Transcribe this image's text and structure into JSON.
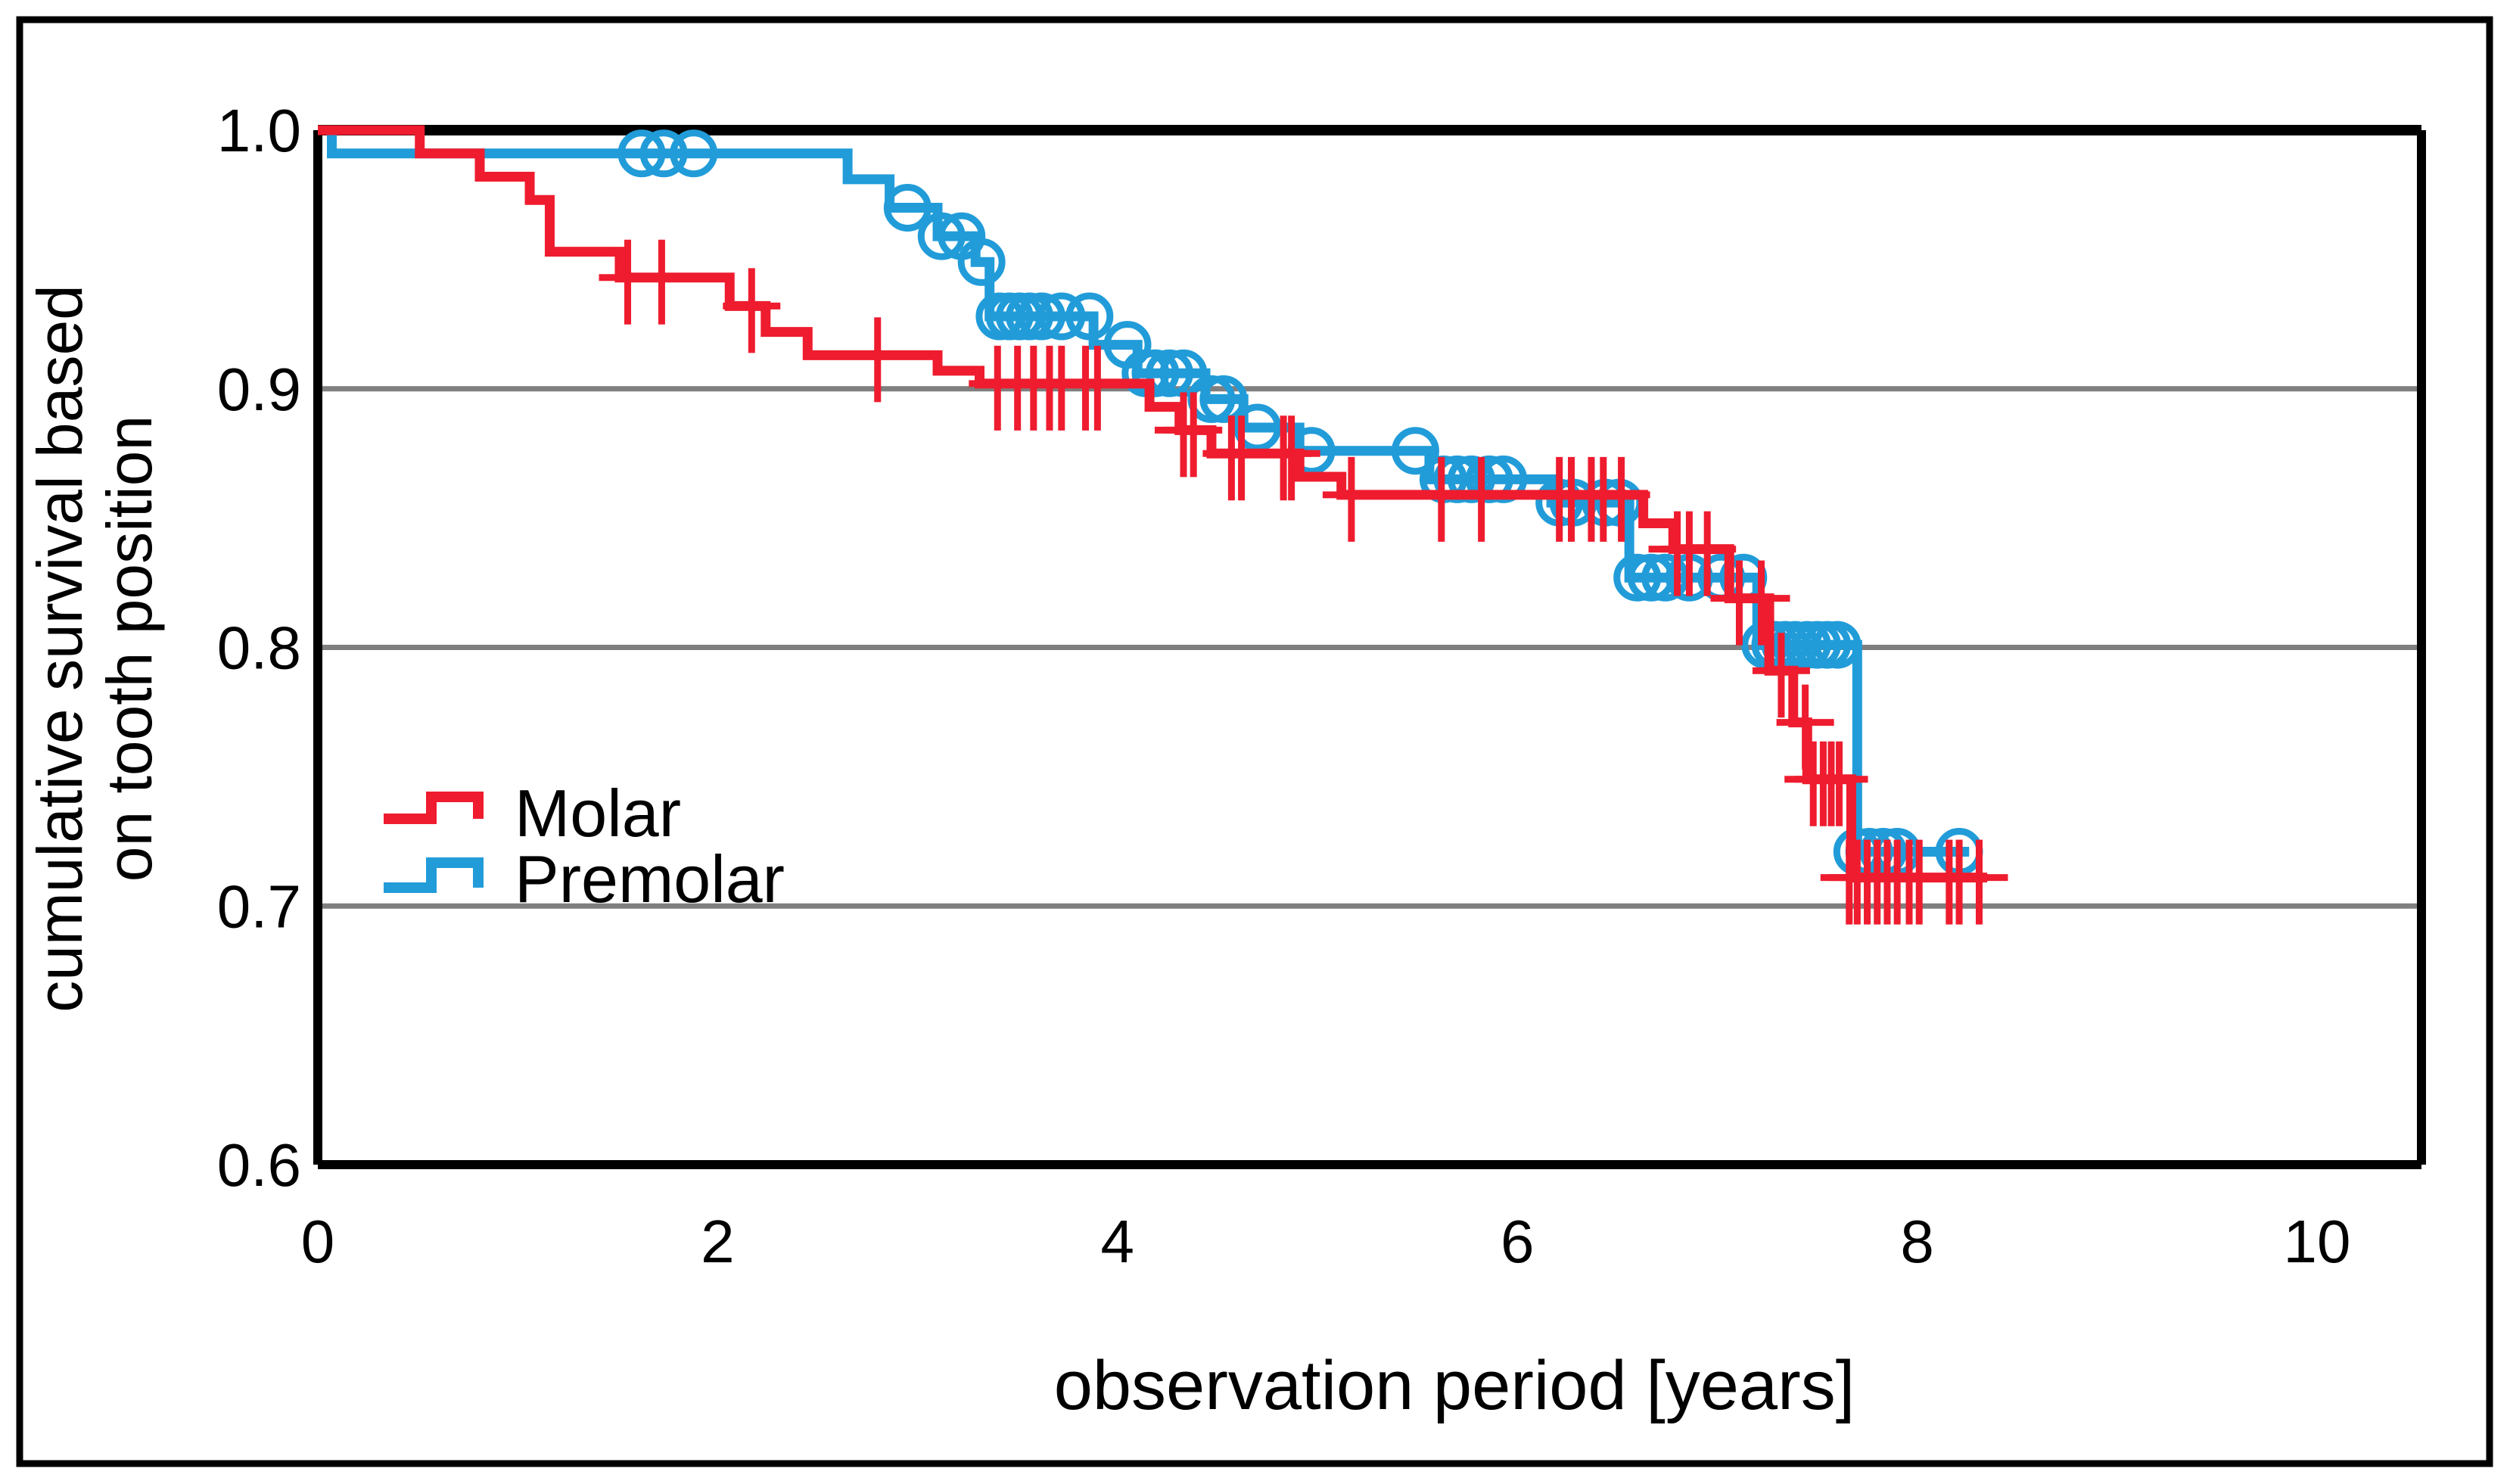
{
  "chart_data": {
    "type": "line",
    "subtype": "kaplan-meier-step",
    "xlabel": "observation period [years]",
    "ylabel_line1": "cumulative survival based",
    "ylabel_line2": "on tooth position",
    "xlim": [
      0,
      10.5
    ],
    "ylim": [
      0.6,
      1.0
    ],
    "grid": "horizontal-only",
    "gridlines": [
      0.9,
      0.8,
      0.7
    ],
    "x_ticks": [
      0,
      2,
      4,
      6,
      8,
      10
    ],
    "y_ticks": [
      {
        "label": "1.0",
        "value": 1.0
      },
      {
        "label": "0.9",
        "value": 0.9
      },
      {
        "label": "0.8",
        "value": 0.8
      },
      {
        "label": "0.7",
        "value": 0.7
      },
      {
        "label": "0.6",
        "value": 0.6
      }
    ],
    "legend_position": "inside-left-middle",
    "series": [
      {
        "name": "Premolar",
        "color": "#219CD9",
        "marker": "circle",
        "steps": [
          [
            0.0,
            1.0
          ],
          [
            0.07,
            0.991
          ],
          [
            2.65,
            0.981
          ],
          [
            2.86,
            0.97
          ],
          [
            3.1,
            0.959
          ],
          [
            3.29,
            0.949
          ],
          [
            3.36,
            0.928
          ],
          [
            3.88,
            0.917
          ],
          [
            4.1,
            0.906
          ],
          [
            4.44,
            0.896
          ],
          [
            4.63,
            0.885
          ],
          [
            4.91,
            0.876
          ],
          [
            5.56,
            0.865
          ],
          [
            6.17,
            0.856
          ],
          [
            6.56,
            0.827
          ],
          [
            7.2,
            0.801
          ],
          [
            7.7,
            0.721
          ]
        ],
        "end": 8.26,
        "censors": [
          [
            1.62,
            0.991
          ],
          [
            1.73,
            0.991
          ],
          [
            1.88,
            0.991
          ],
          [
            2.95,
            0.97
          ],
          [
            3.12,
            0.959
          ],
          [
            3.22,
            0.959
          ],
          [
            3.32,
            0.949
          ],
          [
            3.41,
            0.928
          ],
          [
            3.46,
            0.928
          ],
          [
            3.51,
            0.928
          ],
          [
            3.56,
            0.928
          ],
          [
            3.62,
            0.928
          ],
          [
            3.72,
            0.928
          ],
          [
            3.86,
            0.928
          ],
          [
            4.05,
            0.917
          ],
          [
            4.14,
            0.906
          ],
          [
            4.19,
            0.906
          ],
          [
            4.26,
            0.906
          ],
          [
            4.33,
            0.906
          ],
          [
            4.47,
            0.896
          ],
          [
            4.53,
            0.896
          ],
          [
            4.7,
            0.885
          ],
          [
            4.97,
            0.876
          ],
          [
            5.49,
            0.876
          ],
          [
            5.63,
            0.865
          ],
          [
            5.7,
            0.865
          ],
          [
            5.77,
            0.865
          ],
          [
            5.86,
            0.865
          ],
          [
            5.93,
            0.865
          ],
          [
            6.21,
            0.856
          ],
          [
            6.28,
            0.856
          ],
          [
            6.44,
            0.856
          ],
          [
            6.51,
            0.856
          ],
          [
            6.6,
            0.827
          ],
          [
            6.67,
            0.827
          ],
          [
            6.74,
            0.827
          ],
          [
            6.86,
            0.827
          ],
          [
            7.02,
            0.827
          ],
          [
            7.13,
            0.827
          ],
          [
            7.24,
            0.801
          ],
          [
            7.29,
            0.801
          ],
          [
            7.34,
            0.801
          ],
          [
            7.39,
            0.801
          ],
          [
            7.45,
            0.801
          ],
          [
            7.5,
            0.801
          ],
          [
            7.55,
            0.801
          ],
          [
            7.6,
            0.801
          ],
          [
            7.7,
            0.721
          ],
          [
            7.76,
            0.721
          ],
          [
            7.83,
            0.721
          ],
          [
            7.9,
            0.721
          ],
          [
            8.21,
            0.721
          ]
        ]
      },
      {
        "name": "Molar",
        "color": "#EE1C2E",
        "marker": "plus",
        "steps": [
          [
            0.0,
            1.0
          ],
          [
            0.51,
            0.991
          ],
          [
            0.81,
            0.982
          ],
          [
            1.06,
            0.973
          ],
          [
            1.16,
            0.953
          ],
          [
            1.51,
            0.943
          ],
          [
            2.06,
            0.932
          ],
          [
            2.24,
            0.922
          ],
          [
            2.45,
            0.913
          ],
          [
            3.1,
            0.907
          ],
          [
            3.31,
            0.902
          ],
          [
            4.16,
            0.893
          ],
          [
            4.31,
            0.884
          ],
          [
            4.47,
            0.875
          ],
          [
            4.91,
            0.866
          ],
          [
            5.12,
            0.859
          ],
          [
            6.63,
            0.848
          ],
          [
            6.78,
            0.838
          ],
          [
            7.06,
            0.819
          ],
          [
            7.26,
            0.791
          ],
          [
            7.38,
            0.771
          ],
          [
            7.45,
            0.749
          ],
          [
            7.67,
            0.711
          ]
        ],
        "end": 8.35,
        "censors": [
          [
            1.55,
            0.943
          ],
          [
            1.72,
            0.943
          ],
          [
            2.17,
            0.932
          ],
          [
            2.8,
            0.913
          ],
          [
            3.4,
            0.902
          ],
          [
            3.5,
            0.902
          ],
          [
            3.58,
            0.902
          ],
          [
            3.66,
            0.902
          ],
          [
            3.72,
            0.902
          ],
          [
            3.84,
            0.902
          ],
          [
            3.9,
            0.902
          ],
          [
            4.33,
            0.884
          ],
          [
            4.38,
            0.884
          ],
          [
            4.57,
            0.875
          ],
          [
            4.62,
            0.875
          ],
          [
            4.83,
            0.875
          ],
          [
            4.87,
            0.875
          ],
          [
            5.17,
            0.859
          ],
          [
            5.62,
            0.859
          ],
          [
            5.82,
            0.859
          ],
          [
            6.21,
            0.859
          ],
          [
            6.27,
            0.859
          ],
          [
            6.37,
            0.859
          ],
          [
            6.43,
            0.859
          ],
          [
            6.52,
            0.859
          ],
          [
            6.8,
            0.838
          ],
          [
            6.86,
            0.838
          ],
          [
            6.95,
            0.838
          ],
          [
            7.11,
            0.819
          ],
          [
            7.22,
            0.819
          ],
          [
            7.32,
            0.791
          ],
          [
            7.44,
            0.771
          ],
          [
            7.48,
            0.749
          ],
          [
            7.53,
            0.749
          ],
          [
            7.57,
            0.749
          ],
          [
            7.61,
            0.749
          ],
          [
            7.66,
            0.711
          ],
          [
            7.7,
            0.711
          ],
          [
            7.75,
            0.711
          ],
          [
            7.8,
            0.711
          ],
          [
            7.85,
            0.711
          ],
          [
            7.9,
            0.711
          ],
          [
            7.96,
            0.711
          ],
          [
            8.01,
            0.711
          ],
          [
            8.16,
            0.711
          ],
          [
            8.21,
            0.711
          ],
          [
            8.31,
            0.711
          ]
        ]
      }
    ]
  }
}
